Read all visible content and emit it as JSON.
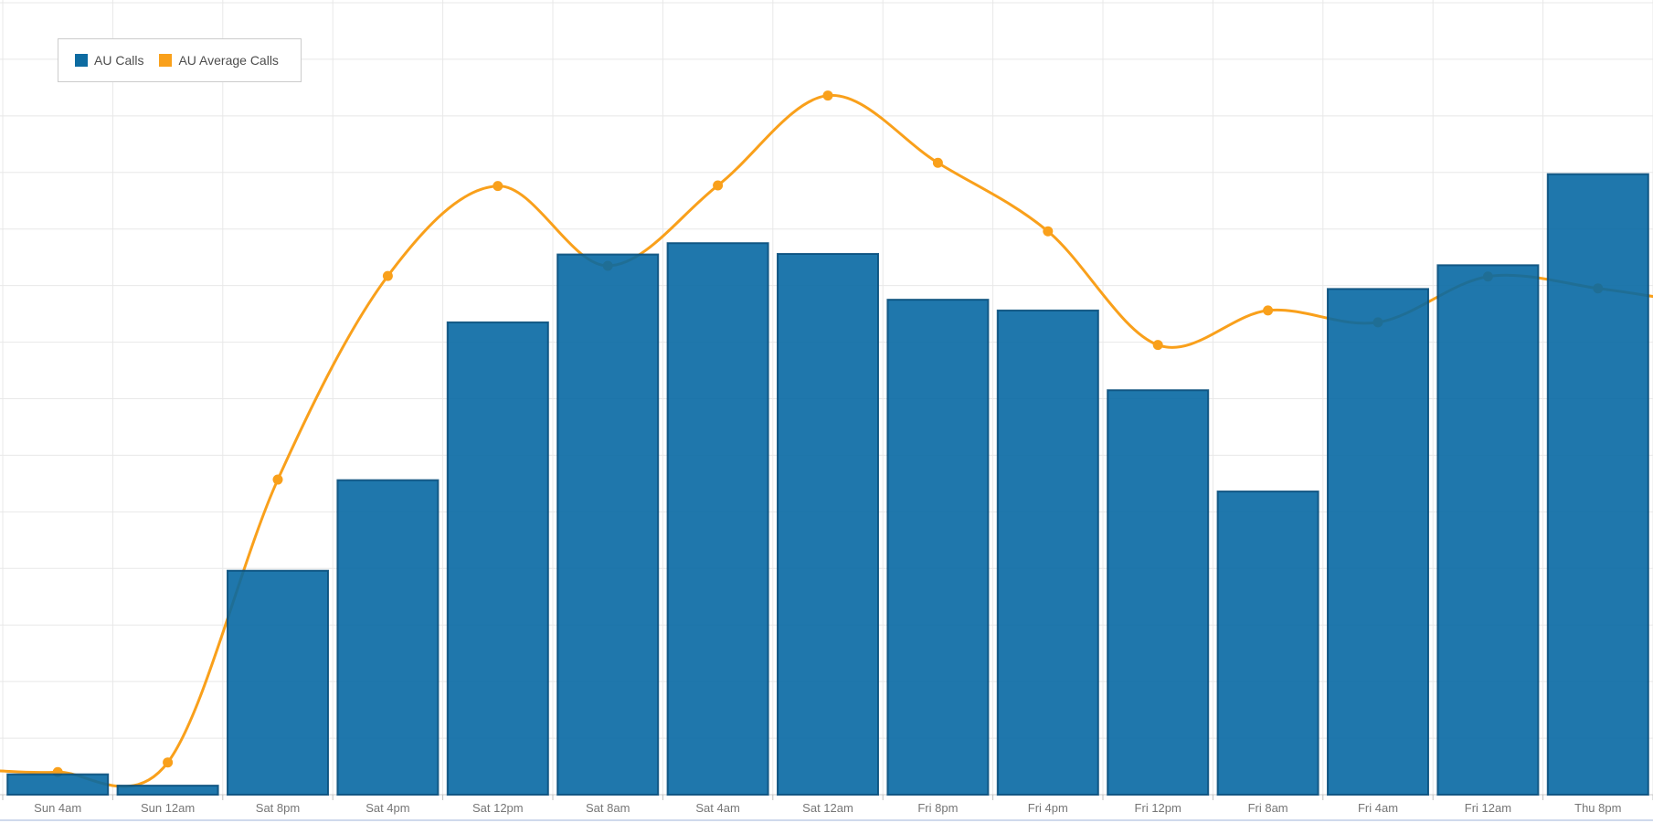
{
  "legend": {
    "position": "top-left",
    "items": [
      {
        "label": "AU Calls",
        "color": "#0d6ba1"
      },
      {
        "label": "AU Average Calls",
        "color": "#f9a01b"
      }
    ]
  },
  "chart_data": {
    "type": "combo",
    "title": "",
    "xlabel": "",
    "ylabel": "",
    "categories": [
      "Sun 4am",
      "Sun 12am",
      "Sat 8pm",
      "Sat 4pm",
      "Sat 12pm",
      "Sat 8am",
      "Sat 4am",
      "Sat 12am",
      "Fri 8pm",
      "Fri 4pm",
      "Fri 12pm",
      "Fri 8am",
      "Fri 4am",
      "Fri 12am",
      "Thu 8pm"
    ],
    "y_axis_labels_visible": false,
    "y_unit": "gridline-units (no tick labels shown)",
    "ylim": [
      0,
      14
    ],
    "grid": true,
    "legend_position": "top-left",
    "series": [
      {
        "name": "AU Calls",
        "type": "bar",
        "color": "#2077ac",
        "border_color": "#11567f",
        "values": [
          0.36,
          0.16,
          3.96,
          5.56,
          8.35,
          9.55,
          9.75,
          9.56,
          8.75,
          8.56,
          7.15,
          5.36,
          8.94,
          9.36,
          10.97
        ]
      },
      {
        "name": "AU Average Calls",
        "type": "line",
        "color": "#f9a01b",
        "marker": "circle",
        "values": [
          0.4,
          0.57,
          5.57,
          9.17,
          10.76,
          9.35,
          10.77,
          12.36,
          11.17,
          9.96,
          7.95,
          8.56,
          8.35,
          9.16,
          8.95
        ],
        "edge_values": {
          "left": 0.42,
          "right": 8.8
        }
      }
    ]
  },
  "colors": {
    "grid_line": "#e8e8e8",
    "axis_line": "#c8c8c8",
    "tick": "#c0c0c0",
    "x_label": "#767676",
    "bar_fill_rgba": "7,104,163,0.9",
    "bar_stroke_rgba": "10,80,125,0.9",
    "line": "#f9a01b",
    "bottom_strip": "#cfd9ec",
    "background": "#ffffff"
  }
}
